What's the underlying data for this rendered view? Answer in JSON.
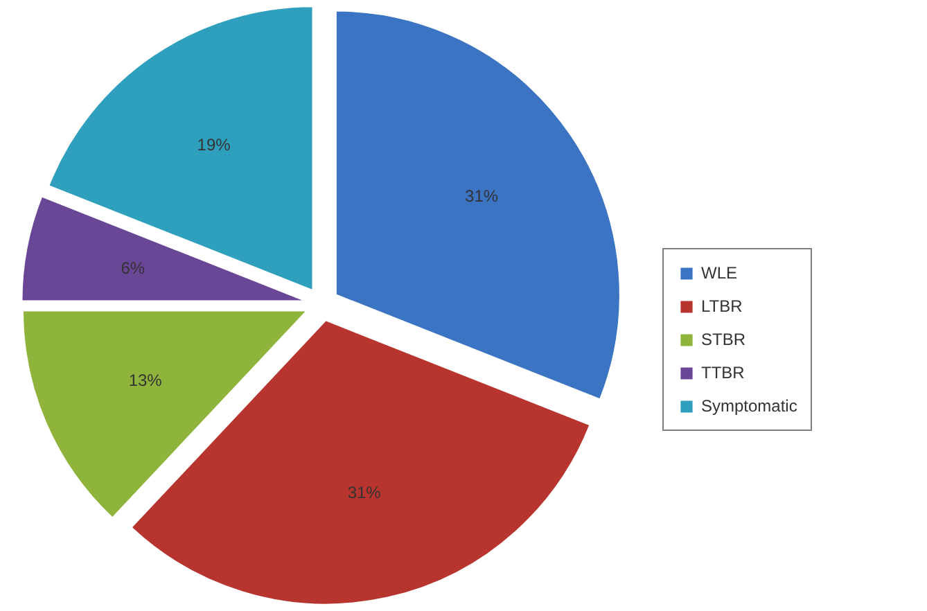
{
  "chart_data": {
    "type": "pie",
    "categories": [
      "WLE",
      "LTBR",
      "STBR",
      "TTBR",
      "Symptomatic"
    ],
    "values": [
      31,
      31,
      13,
      6,
      19
    ],
    "colors": [
      "#3b74c3",
      "#b8352f",
      "#8fb43c",
      "#6a4696",
      "#2f9fbe"
    ],
    "value_labels": [
      "31%",
      "31%",
      "13%",
      "6%",
      "19%"
    ],
    "legend": "right"
  }
}
